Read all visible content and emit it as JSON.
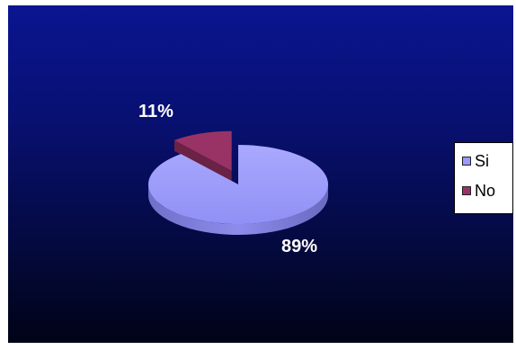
{
  "chart_data": {
    "type": "pie",
    "title": "",
    "slices": [
      {
        "name": "Si",
        "value": 89,
        "label": "89%",
        "color": "#9999ff",
        "exploded": false
      },
      {
        "name": "No",
        "value": 11,
        "label": "11%",
        "color": "#993366",
        "exploded": true
      }
    ],
    "three_d": true,
    "legend_position": "right",
    "background": "dark-blue-gradient"
  },
  "legend": {
    "items": [
      {
        "label": "Si",
        "color": "#9999ff"
      },
      {
        "label": "No",
        "color": "#993366"
      }
    ]
  }
}
